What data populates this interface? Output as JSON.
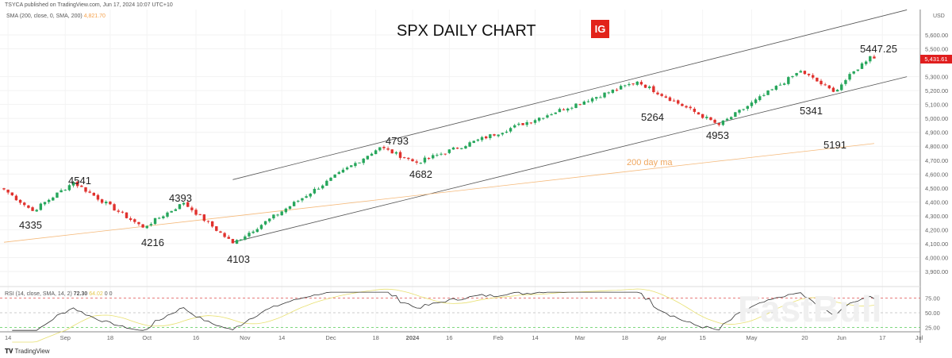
{
  "header": {
    "published": "TSYCA published on TradingView.com, Jun 17, 2024 10:07 UTC+10",
    "sma_legend": "SMA (200, close, 0, SMA, 200)",
    "sma_value": "4,821.70",
    "rsi_legend": "RSI (14, close, SMA, 14, 2)",
    "rsi_value": "72.30",
    "rsi_sma_value": "64.02",
    "rsi_extra": "0  0"
  },
  "brand": {
    "ig_logo": "IG",
    "footer": "TradingView",
    "watermark": "FastBull"
  },
  "colors": {
    "up": "#26a65b",
    "down": "#e0312d",
    "sma": "#f5b97a",
    "last_price_bg": "#e01e1e"
  },
  "chart_data": {
    "type": "candlestick",
    "title": "SPX DAILY CHART",
    "currency": "USD",
    "ylim": [
      3850,
      5700
    ],
    "y_ticks": [
      "5,600.00",
      "5,500.00",
      "5,300.00",
      "5,200.00",
      "5,100.00",
      "5,000.00",
      "4,900.00",
      "4,800.00",
      "4,700.00",
      "4,600.00",
      "4,500.00",
      "4,400.00",
      "4,300.00",
      "4,200.00",
      "4,100.00",
      "4,000.00",
      "3,900.00"
    ],
    "y_tick_values": [
      5600,
      5500,
      5300,
      5200,
      5100,
      5000,
      4900,
      4800,
      4700,
      4600,
      4500,
      4400,
      4300,
      4200,
      4100,
      4000,
      3900
    ],
    "last_price": "5,431.61",
    "x_ticks": [
      "14",
      "Sep",
      "18",
      "Oct",
      "16",
      "Nov",
      "14",
      "Dec",
      "18",
      "2024",
      "16",
      "Feb",
      "14",
      "Mar",
      "18",
      "Apr",
      "15",
      "May",
      "20",
      "Jun",
      "17",
      "Jul"
    ],
    "x_tick_index": [
      1,
      15,
      26,
      35,
      47,
      59,
      68,
      80,
      91,
      100,
      109,
      121,
      130,
      141,
      152,
      161,
      171,
      183,
      196,
      205,
      215,
      224
    ],
    "pivots": [
      [
        0,
        4490
      ],
      [
        7,
        4335
      ],
      [
        17,
        4541
      ],
      [
        34,
        4216
      ],
      [
        44,
        4393
      ],
      [
        56,
        4103
      ],
      [
        92,
        4793
      ],
      [
        101,
        4682
      ],
      [
        155,
        5264
      ],
      [
        175,
        4953
      ],
      [
        195,
        5341
      ],
      [
        203,
        5191
      ],
      [
        212,
        5447
      ],
      [
        213,
        5431
      ]
    ],
    "annotations": [
      "4335",
      "4541",
      "4216",
      "4393",
      "4103",
      "4793",
      "4682",
      "5264",
      "4953",
      "5341",
      "5191",
      "5447.25"
    ],
    "sma_label": "200 day ma",
    "sma200": [
      [
        0,
        4110
      ],
      [
        213,
        4820
      ]
    ],
    "channel_upper": [
      [
        56,
        4560
      ],
      [
        221,
        5780
      ]
    ],
    "channel_lower": [
      [
        56,
        4110
      ],
      [
        221,
        5300
      ]
    ],
    "rsi": {
      "levels": [
        75,
        50,
        25
      ],
      "level_labels": [
        "75.00",
        "50.00",
        "25.00"
      ]
    }
  }
}
